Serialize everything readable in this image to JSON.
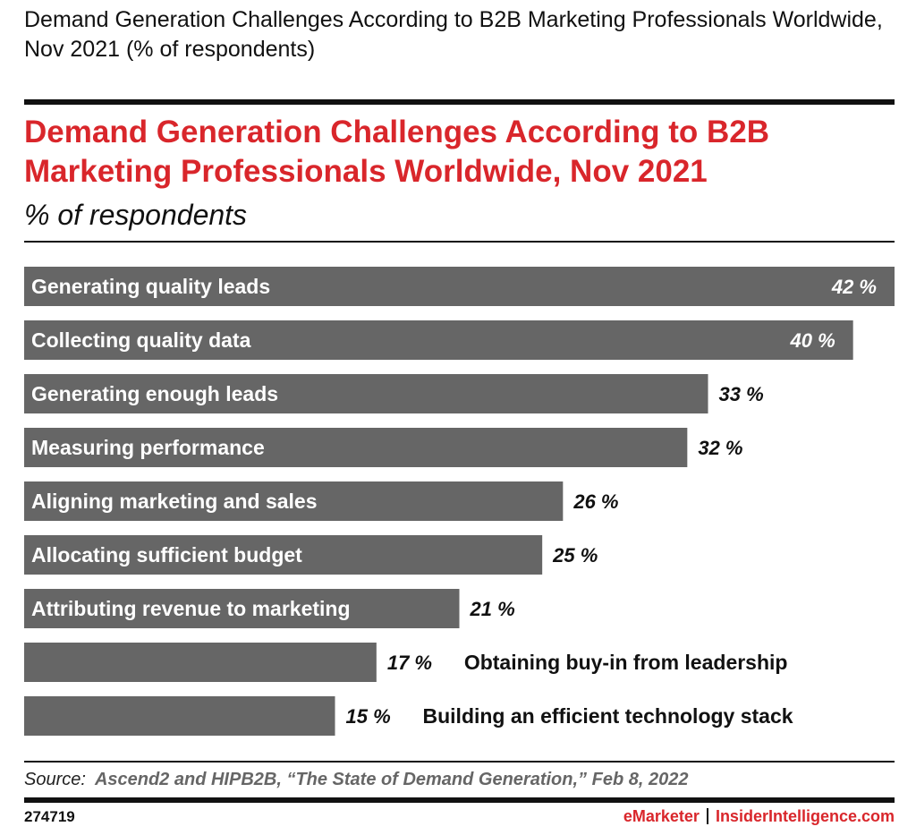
{
  "header": {
    "top_title": "Demand Generation Challenges According to B2B Marketing Professionals Worldwide, Nov 2021 (% of respondents)"
  },
  "chart_data": {
    "type": "bar",
    "orientation": "horizontal",
    "title": "Demand Generation Challenges According to B2B Marketing Professionals Worldwide, Nov 2021",
    "subtitle": "% of respondents",
    "categories": [
      "Generating quality leads",
      "Collecting quality data",
      "Generating enough leads",
      "Measuring performance",
      "Aligning marketing and sales",
      "Allocating sufficient budget",
      "Attributing revenue to marketing",
      "Obtaining buy-in from leadership",
      "Building an efficient technology stack"
    ],
    "values": [
      42,
      40,
      33,
      32,
      26,
      25,
      21,
      17,
      15
    ],
    "value_labels": [
      "42 %",
      "40 %",
      "33 %",
      "32 %",
      "26 %",
      "25 %",
      "21 %",
      "17 %",
      "15 %"
    ],
    "xlim": [
      0,
      42
    ],
    "grid": false,
    "bar_color": "#666666",
    "title_color": "#d9262b"
  },
  "footer": {
    "source_label": "Source:",
    "source_text": "Ascend2 and HIPB2B, “The State of Demand Generation,” Feb 8, 2022",
    "chart_id": "274719",
    "brand1": "eMarketer",
    "brand2": "InsiderIntelligence.com"
  }
}
